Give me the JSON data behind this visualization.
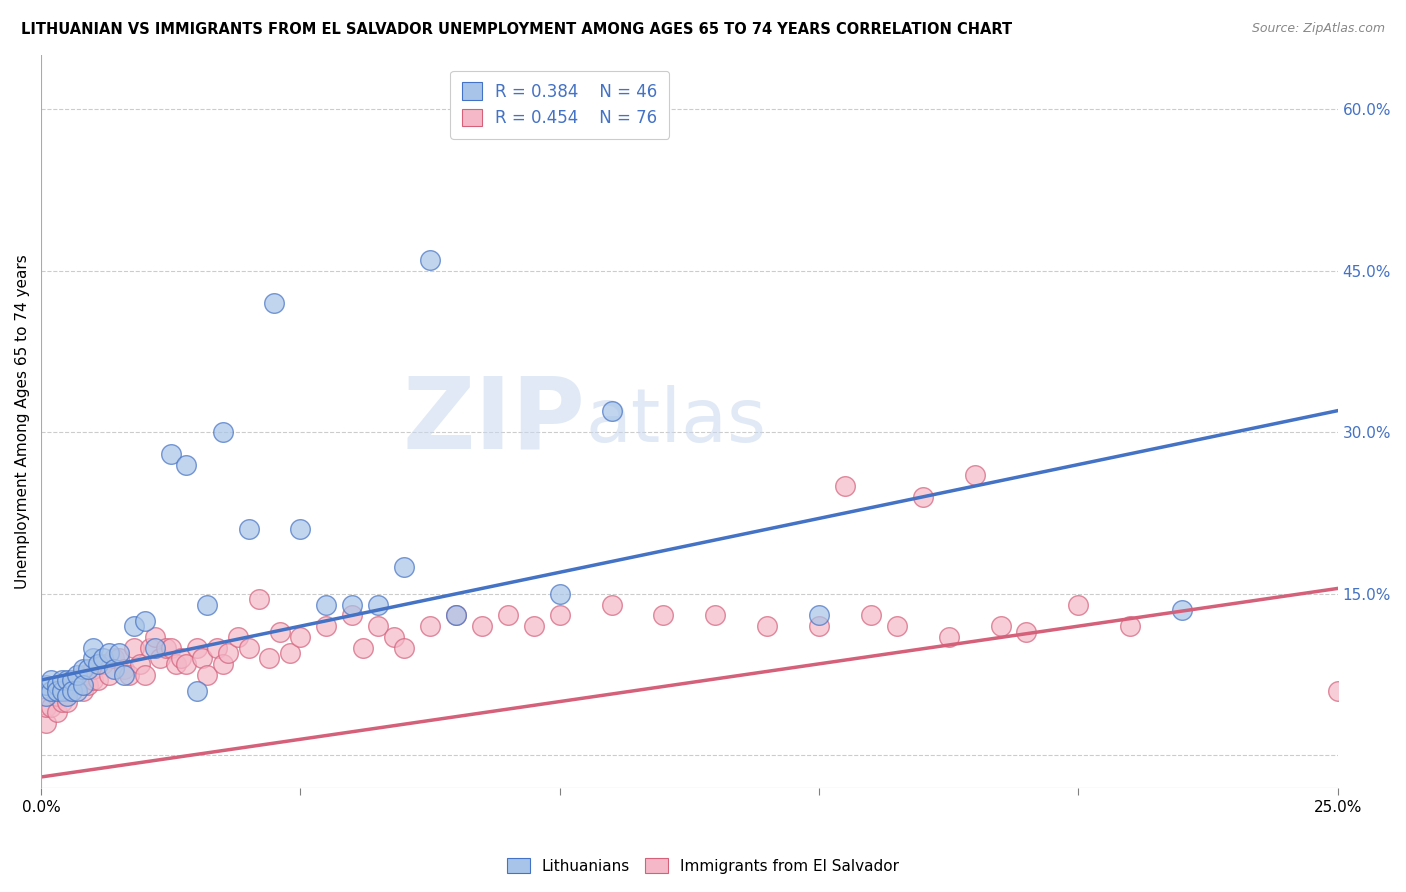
{
  "title": "LITHUANIAN VS IMMIGRANTS FROM EL SALVADOR UNEMPLOYMENT AMONG AGES 65 TO 74 YEARS CORRELATION CHART",
  "source": "Source: ZipAtlas.com",
  "ylabel": "Unemployment Among Ages 65 to 74 years",
  "xlim": [
    0.0,
    0.25
  ],
  "ylim": [
    -0.03,
    0.65
  ],
  "y_ticks_right": [
    0.0,
    0.15,
    0.3,
    0.45,
    0.6
  ],
  "y_tick_labels_right": [
    "",
    "15.0%",
    "30.0%",
    "45.0%",
    "60.0%"
  ],
  "legend_blue_label": "Lithuanians",
  "legend_pink_label": "Immigrants from El Salvador",
  "R_blue": 0.384,
  "N_blue": 46,
  "R_pink": 0.454,
  "N_pink": 76,
  "blue_face_color": "#a8c4e8",
  "blue_edge_color": "#4472c4",
  "pink_face_color": "#f4b8c8",
  "pink_edge_color": "#d4607a",
  "blue_line_color": "#4472c4",
  "pink_line_color": "#d4607a",
  "watermark_zip": "ZIP",
  "watermark_atlas": "atlas",
  "background_color": "#ffffff",
  "grid_color": "#cccccc",
  "blue_line_x": [
    0.0,
    0.25
  ],
  "blue_line_y": [
    0.07,
    0.32
  ],
  "pink_line_x": [
    0.0,
    0.25
  ],
  "pink_line_y": [
    -0.02,
    0.155
  ],
  "blue_scatter_x": [
    0.001,
    0.001,
    0.002,
    0.002,
    0.003,
    0.003,
    0.004,
    0.004,
    0.005,
    0.005,
    0.006,
    0.006,
    0.007,
    0.007,
    0.008,
    0.008,
    0.009,
    0.01,
    0.01,
    0.011,
    0.012,
    0.013,
    0.014,
    0.015,
    0.016,
    0.018,
    0.02,
    0.022,
    0.025,
    0.028,
    0.03,
    0.032,
    0.035,
    0.04,
    0.045,
    0.05,
    0.055,
    0.06,
    0.065,
    0.07,
    0.075,
    0.08,
    0.1,
    0.11,
    0.15,
    0.22
  ],
  "blue_scatter_y": [
    0.055,
    0.065,
    0.06,
    0.07,
    0.065,
    0.06,
    0.06,
    0.07,
    0.07,
    0.055,
    0.07,
    0.06,
    0.06,
    0.075,
    0.08,
    0.065,
    0.08,
    0.09,
    0.1,
    0.085,
    0.09,
    0.095,
    0.08,
    0.095,
    0.075,
    0.12,
    0.125,
    0.1,
    0.28,
    0.27,
    0.06,
    0.14,
    0.3,
    0.21,
    0.42,
    0.21,
    0.14,
    0.14,
    0.14,
    0.175,
    0.46,
    0.13,
    0.15,
    0.32,
    0.13,
    0.135
  ],
  "pink_scatter_x": [
    0.001,
    0.001,
    0.002,
    0.003,
    0.003,
    0.004,
    0.004,
    0.005,
    0.005,
    0.006,
    0.006,
    0.007,
    0.008,
    0.008,
    0.009,
    0.01,
    0.01,
    0.011,
    0.012,
    0.013,
    0.014,
    0.015,
    0.016,
    0.017,
    0.018,
    0.019,
    0.02,
    0.021,
    0.022,
    0.023,
    0.024,
    0.025,
    0.026,
    0.027,
    0.028,
    0.03,
    0.031,
    0.032,
    0.034,
    0.035,
    0.036,
    0.038,
    0.04,
    0.042,
    0.044,
    0.046,
    0.048,
    0.05,
    0.055,
    0.06,
    0.062,
    0.065,
    0.068,
    0.07,
    0.075,
    0.08,
    0.085,
    0.09,
    0.095,
    0.1,
    0.11,
    0.12,
    0.13,
    0.14,
    0.15,
    0.155,
    0.16,
    0.165,
    0.17,
    0.175,
    0.18,
    0.185,
    0.19,
    0.2,
    0.21,
    0.25
  ],
  "pink_scatter_y": [
    0.03,
    0.045,
    0.045,
    0.04,
    0.055,
    0.05,
    0.06,
    0.05,
    0.06,
    0.06,
    0.07,
    0.065,
    0.06,
    0.075,
    0.065,
    0.07,
    0.08,
    0.07,
    0.085,
    0.075,
    0.09,
    0.09,
    0.08,
    0.075,
    0.1,
    0.085,
    0.075,
    0.1,
    0.11,
    0.09,
    0.1,
    0.1,
    0.085,
    0.09,
    0.085,
    0.1,
    0.09,
    0.075,
    0.1,
    0.085,
    0.095,
    0.11,
    0.1,
    0.145,
    0.09,
    0.115,
    0.095,
    0.11,
    0.12,
    0.13,
    0.1,
    0.12,
    0.11,
    0.1,
    0.12,
    0.13,
    0.12,
    0.13,
    0.12,
    0.13,
    0.14,
    0.13,
    0.13,
    0.12,
    0.12,
    0.25,
    0.13,
    0.12,
    0.24,
    0.11,
    0.26,
    0.12,
    0.115,
    0.14,
    0.12,
    0.06
  ]
}
